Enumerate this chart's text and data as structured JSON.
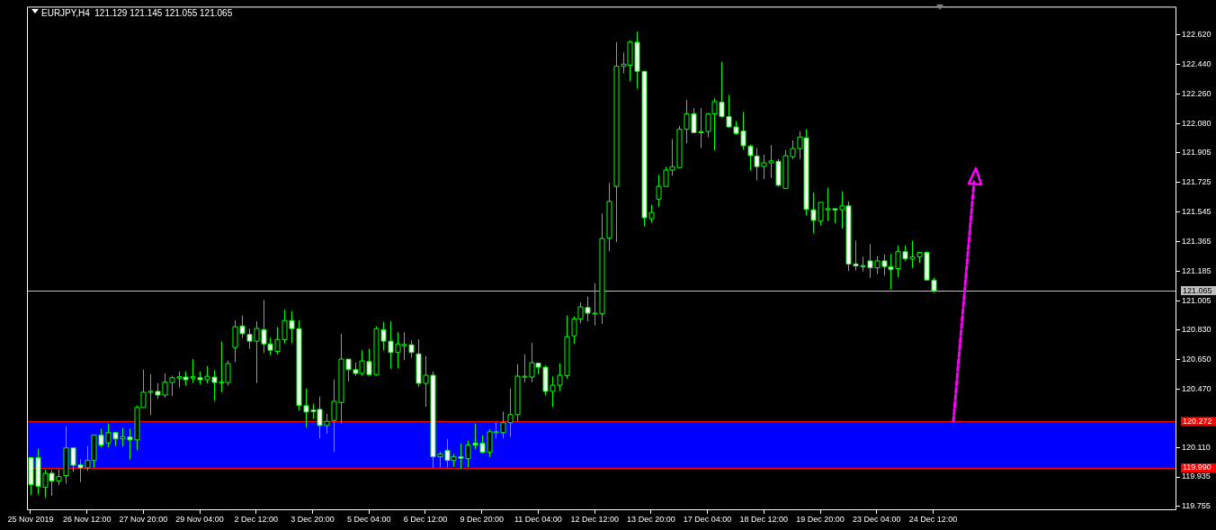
{
  "chart_data": {
    "type": "candlestick",
    "title": "EURJPY,H4  121.129 121.145 121.055 121.065",
    "categories": [
      "25 Nov 2019",
      null,
      null,
      null,
      null,
      null,
      null,
      null,
      "26 Nov 12:00",
      null,
      null,
      null,
      null,
      null,
      null,
      null,
      "27 Nov 20:00",
      null,
      null,
      null,
      null,
      null,
      null,
      null,
      "29 Nov 04:00",
      null,
      null,
      null,
      null,
      null,
      null,
      null,
      "2 Dec 12:00",
      null,
      null,
      null,
      null,
      null,
      null,
      null,
      "3 Dec 20:00",
      null,
      null,
      null,
      null,
      null,
      null,
      null,
      "5 Dec 04:00",
      null,
      null,
      null,
      null,
      null,
      null,
      null,
      "6 Dec 12:00",
      null,
      null,
      null,
      null,
      null,
      null,
      null,
      "9 Dec 20:00",
      null,
      null,
      null,
      null,
      null,
      null,
      null,
      "11 Dec 04:00",
      null,
      null,
      null,
      null,
      null,
      null,
      null,
      "12 Dec 12:00",
      null,
      null,
      null,
      null,
      null,
      null,
      null,
      "13 Dec 20:00",
      null,
      null,
      null,
      null,
      null,
      null,
      null,
      "17 Dec 04:00",
      null,
      null,
      null,
      null,
      null,
      null,
      null,
      "18 Dec 12:00",
      null,
      null,
      null,
      null,
      null,
      null,
      null,
      "19 Dec 20:00",
      null,
      null,
      null,
      null,
      null,
      null,
      null,
      "23 Dec 04:00",
      null,
      null,
      null,
      null,
      null,
      null,
      null,
      "24 Dec 12:00",
      null,
      null,
      null,
      null,
      null,
      null,
      null,
      null,
      null,
      null,
      null,
      null,
      null,
      null,
      null,
      null,
      null,
      null,
      null,
      null,
      null,
      null,
      null,
      null,
      null,
      null,
      null,
      null,
      null,
      null,
      null,
      null,
      null,
      null
    ],
    "ohlc": [
      [
        120.052,
        120.052,
        119.825,
        119.888
      ],
      [
        120.052,
        120.106,
        119.829,
        119.878
      ],
      [
        119.872,
        119.979,
        119.811,
        119.957
      ],
      [
        119.957,
        119.975,
        119.82,
        119.91
      ],
      [
        119.91,
        119.979,
        119.885,
        119.937
      ],
      [
        119.943,
        120.242,
        119.894,
        120.111
      ],
      [
        120.111,
        120.111,
        119.965,
        120.006
      ],
      [
        120.008,
        120.042,
        119.903,
        119.99
      ],
      [
        119.99,
        120.124,
        119.97,
        120.035
      ],
      [
        120.035,
        120.193,
        119.988,
        120.188
      ],
      [
        120.188,
        120.227,
        120.115,
        120.128
      ],
      [
        120.142,
        120.26,
        120.115,
        120.204
      ],
      [
        120.204,
        120.204,
        120.124,
        120.166
      ],
      [
        120.166,
        120.233,
        120.12,
        120.179
      ],
      [
        120.177,
        120.227,
        120.042,
        120.16
      ],
      [
        120.16,
        120.369,
        120.097,
        120.356
      ],
      [
        120.356,
        120.586,
        120.354,
        120.449
      ],
      [
        120.449,
        120.559,
        120.311,
        120.454
      ],
      [
        120.454,
        120.505,
        120.409,
        120.432
      ],
      [
        120.432,
        120.563,
        120.416,
        120.51
      ],
      [
        120.508,
        120.55,
        120.427,
        120.537
      ],
      [
        120.534,
        120.575,
        120.478,
        120.543
      ],
      [
        120.541,
        120.575,
        120.49,
        120.525
      ],
      [
        120.535,
        120.65,
        120.507,
        120.543
      ],
      [
        120.537,
        120.575,
        120.496,
        120.525
      ],
      [
        120.525,
        120.608,
        120.503,
        120.546
      ],
      [
        120.541,
        120.583,
        120.396,
        120.508
      ],
      [
        120.507,
        120.753,
        120.45,
        120.51
      ],
      [
        120.508,
        120.641,
        120.49,
        120.623
      ],
      [
        120.72,
        120.885,
        120.632,
        120.846
      ],
      [
        120.851,
        120.916,
        120.777,
        120.804
      ],
      [
        120.8,
        120.835,
        120.713,
        120.759
      ],
      [
        120.759,
        120.88,
        120.505,
        120.836
      ],
      [
        120.829,
        121.009,
        120.686,
        120.742
      ],
      [
        120.742,
        120.78,
        120.673,
        120.704
      ],
      [
        120.697,
        120.846,
        120.681,
        120.769
      ],
      [
        120.768,
        120.949,
        120.746,
        120.884
      ],
      [
        120.884,
        120.94,
        120.749,
        120.835
      ],
      [
        120.835,
        120.885,
        120.338,
        120.369
      ],
      [
        120.367,
        120.472,
        120.237,
        120.329
      ],
      [
        120.342,
        120.38,
        120.287,
        120.331
      ],
      [
        120.345,
        120.423,
        120.169,
        120.247
      ],
      [
        120.247,
        120.318,
        120.197,
        120.273
      ],
      [
        120.278,
        120.526,
        120.088,
        120.394
      ],
      [
        120.387,
        120.804,
        120.26,
        120.65
      ],
      [
        120.65,
        120.65,
        120.514,
        120.586
      ],
      [
        120.586,
        120.628,
        120.55,
        120.563
      ],
      [
        120.563,
        120.704,
        120.55,
        120.639
      ],
      [
        120.635,
        120.713,
        120.55,
        120.556
      ],
      [
        120.556,
        120.849,
        120.55,
        120.835
      ],
      [
        120.829,
        120.876,
        120.704,
        120.759
      ],
      [
        120.759,
        120.88,
        120.59,
        120.69
      ],
      [
        120.69,
        120.813,
        120.595,
        120.742
      ],
      [
        120.731,
        120.813,
        120.644,
        120.739
      ],
      [
        120.737,
        120.764,
        120.659,
        120.69
      ],
      [
        120.682,
        120.771,
        120.481,
        120.503
      ],
      [
        120.503,
        120.668,
        120.36,
        120.552
      ],
      [
        120.552,
        120.575,
        119.99,
        120.057
      ],
      [
        120.057,
        120.088,
        119.994,
        120.075
      ],
      [
        120.095,
        120.166,
        119.992,
        120.035
      ],
      [
        120.035,
        120.075,
        119.997,
        120.057
      ],
      [
        120.057,
        120.139,
        119.981,
        120.048
      ],
      [
        120.046,
        120.155,
        119.992,
        120.128
      ],
      [
        120.139,
        120.26,
        120.104,
        120.128
      ],
      [
        120.139,
        120.188,
        120.079,
        120.084
      ],
      [
        120.084,
        120.224,
        120.057,
        120.209
      ],
      [
        120.204,
        120.265,
        120.169,
        120.209
      ],
      [
        120.204,
        120.331,
        120.169,
        120.264
      ],
      [
        120.264,
        120.472,
        120.178,
        120.313
      ],
      [
        120.313,
        120.619,
        120.273,
        120.546
      ],
      [
        120.541,
        120.679,
        120.51,
        120.546
      ],
      [
        120.541,
        120.749,
        120.51,
        120.628
      ],
      [
        120.626,
        120.626,
        120.559,
        120.601
      ],
      [
        120.601,
        120.612,
        120.43,
        120.454
      ],
      [
        120.454,
        120.546,
        120.36,
        120.492
      ],
      [
        120.492,
        120.624,
        120.456,
        120.552
      ],
      [
        120.55,
        120.916,
        120.532,
        120.786
      ],
      [
        120.791,
        120.909,
        120.742,
        120.894
      ],
      [
        120.894,
        120.994,
        120.867,
        120.967
      ],
      [
        120.963,
        121.028,
        120.88,
        120.929
      ],
      [
        120.924,
        121.111,
        120.854,
        120.929
      ],
      [
        120.925,
        121.534,
        120.864,
        121.382
      ],
      [
        121.384,
        121.719,
        121.305,
        121.607
      ],
      [
        121.698,
        122.573,
        121.36,
        122.427
      ],
      [
        122.427,
        122.51,
        122.385,
        122.44
      ],
      [
        122.434,
        122.585,
        122.336,
        122.573
      ],
      [
        122.573,
        122.638,
        122.292,
        122.397
      ],
      [
        122.397,
        122.397,
        121.455,
        121.508
      ],
      [
        121.502,
        121.587,
        121.479,
        121.54
      ],
      [
        121.621,
        121.769,
        121.575,
        121.698
      ],
      [
        121.698,
        121.818,
        121.698,
        121.797
      ],
      [
        121.797,
        121.986,
        121.763,
        121.818
      ],
      [
        121.812,
        122.065,
        121.808,
        122.045
      ],
      [
        122.045,
        122.223,
        121.96,
        122.138
      ],
      [
        122.138,
        122.174,
        122.024,
        122.024
      ],
      [
        122.03,
        122.174,
        121.931,
        122.024
      ],
      [
        122.032,
        122.144,
        121.996,
        122.138
      ],
      [
        122.138,
        122.233,
        121.917,
        122.213
      ],
      [
        122.209,
        122.454,
        122.115,
        122.122
      ],
      [
        122.122,
        122.253,
        122.055,
        122.059
      ],
      [
        122.059,
        122.095,
        122.012,
        122.02
      ],
      [
        122.034,
        122.15,
        121.921,
        121.945
      ],
      [
        121.943,
        121.951,
        121.795,
        121.885
      ],
      [
        121.883,
        121.931,
        121.735,
        121.818
      ],
      [
        121.819,
        121.891,
        121.741,
        121.841
      ],
      [
        121.841,
        121.949,
        121.75,
        121.853
      ],
      [
        121.851,
        121.864,
        121.696,
        121.705
      ],
      [
        121.686,
        121.919,
        121.683,
        121.884
      ],
      [
        121.879,
        121.978,
        121.864,
        121.928
      ],
      [
        121.928,
        122.033,
        121.864,
        121.998
      ],
      [
        121.993,
        122.044,
        121.523,
        121.558
      ],
      [
        121.556,
        121.661,
        121.415,
        121.492
      ],
      [
        121.487,
        121.601,
        121.462,
        121.601
      ],
      [
        121.556,
        121.69,
        121.489,
        121.563
      ],
      [
        121.563,
        121.563,
        121.474,
        121.556
      ],
      [
        121.556,
        121.668,
        121.442,
        121.58
      ],
      [
        121.58,
        121.607,
        121.184,
        121.226
      ],
      [
        121.228,
        121.369,
        121.188,
        121.215
      ],
      [
        121.217,
        121.271,
        121.181,
        121.212
      ],
      [
        121.246,
        121.348,
        121.143,
        121.204
      ],
      [
        121.204,
        121.275,
        121.166,
        121.246
      ],
      [
        121.246,
        121.284,
        121.157,
        121.212
      ],
      [
        121.21,
        121.288,
        121.072,
        121.193
      ],
      [
        121.199,
        121.34,
        121.148,
        121.302
      ],
      [
        121.302,
        121.34,
        121.244,
        121.259
      ],
      [
        121.257,
        121.369,
        121.203,
        121.27
      ],
      [
        121.27,
        121.297,
        121.235,
        121.297
      ],
      [
        121.297,
        121.304,
        121.126,
        121.13
      ],
      [
        121.129,
        121.145,
        121.055,
        121.065
      ],
      null,
      null,
      null,
      null,
      null,
      null,
      null,
      null,
      null,
      null,
      null,
      null,
      null,
      null,
      null,
      null,
      null,
      null,
      null,
      null,
      null,
      null,
      null,
      null,
      null,
      null,
      null,
      null,
      null,
      null,
      null,
      null,
      null,
      null
    ],
    "color": "#00ff00",
    "colors": [
      "#ffffff",
      "#ffffff",
      "#000000",
      "#ffffff",
      "#000000",
      "#000000",
      "#ffffff",
      "#ffffff",
      "#000000",
      "#000000",
      "#ffffff",
      "#000000",
      "#ffffff",
      "#000000",
      "#ffffff",
      "#000000",
      "#000000",
      "#000000",
      "#ffffff",
      "#000000",
      "#000000",
      "#000000",
      "#ffffff",
      "#000000",
      "#ffffff",
      "#000000",
      "#ffffff",
      "#000000",
      "#000000",
      "#000000",
      "#ffffff",
      "#ffffff",
      "#000000",
      "#ffffff",
      "#ffffff",
      "#000000",
      "#000000",
      "#ffffff",
      "#ffffff",
      "#ffffff",
      "#ffffff",
      "#ffffff",
      "#000000",
      "#000000",
      "#000000",
      "#ffffff",
      "#ffffff",
      "#000000",
      "#ffffff",
      "#000000",
      "#ffffff",
      "#ffffff",
      "#000000",
      "#000000",
      "#ffffff",
      "#ffffff",
      "#000000",
      "#ffffff",
      "#000000",
      "#ffffff",
      "#000000",
      "#ffffff",
      "#000000",
      "#ffffff",
      "#ffffff",
      "#000000",
      "#000000",
      "#000000",
      "#000000",
      "#000000",
      "#000000",
      "#000000",
      "#ffffff",
      "#ffffff",
      "#000000",
      "#000000",
      "#000000",
      "#000000",
      "#000000",
      "#ffffff",
      "#000000",
      "#000000",
      "#000000",
      "#000000",
      "#000000",
      "#000000",
      "#ffffff",
      "#ffffff",
      "#000000",
      "#000000",
      "#000000",
      "#000000",
      "#000000",
      "#000000",
      "#ffffff",
      "#ffffff",
      "#000000",
      "#000000",
      "#ffffff",
      "#ffffff",
      "#ffffff",
      "#ffffff",
      "#ffffff",
      "#ffffff",
      "#000000",
      "#000000",
      "#ffffff",
      "#000000",
      "#000000",
      "#000000",
      "#ffffff",
      "#ffffff",
      "#000000",
      "#000000",
      "#ffffff",
      "#000000",
      "#ffffff",
      "#ffffff",
      "#ffffff",
      "#ffffff",
      "#000000",
      "#ffffff",
      "#ffffff",
      "#000000",
      "#ffffff",
      "#000000",
      "#000000",
      "#ffffff",
      "#ffffff",
      null,
      null,
      null,
      null,
      null,
      null,
      null,
      null,
      null,
      null,
      null,
      null,
      null,
      null,
      null,
      null,
      null,
      null,
      null,
      null,
      null,
      null,
      null,
      null,
      null,
      null,
      null,
      null,
      null,
      null,
      null,
      null,
      null,
      null
    ],
    "ylim": [
      119.733,
      122.789
    ],
    "yticks": [
      {
        "value": 122.62,
        "label": "122.620"
      },
      {
        "value": 122.44,
        "label": "122.440"
      },
      {
        "value": 122.26,
        "label": "122.260"
      },
      {
        "value": 122.08,
        "label": "122.080"
      },
      121.905,
      121.725,
      121.545,
      121.365,
      121.185,
      121.005,
      {
        "value": 120.83,
        "label": "120.830"
      },
      {
        "value": 120.65,
        "label": "120.650"
      },
      {
        "value": 120.47,
        "label": "120.470"
      },
      {
        "value": 120.11,
        "label": "120.110"
      },
      119.935,
      119.755
    ],
    "bands": [
      {
        "axis": "y",
        "from": 119.99,
        "to": 120.272,
        "color": "#0000ff"
      }
    ],
    "ref_lines": [
      {
        "axis": "y",
        "value": 121.065,
        "label": "121.065",
        "color": "#c0c0c0"
      },
      {
        "axis": "y",
        "value": 120.272,
        "label": "120.272",
        "color": "#ff0000"
      },
      {
        "axis": "y",
        "value": 119.99,
        "label": "119.990",
        "color": "#ff0000"
      }
    ]
  }
}
